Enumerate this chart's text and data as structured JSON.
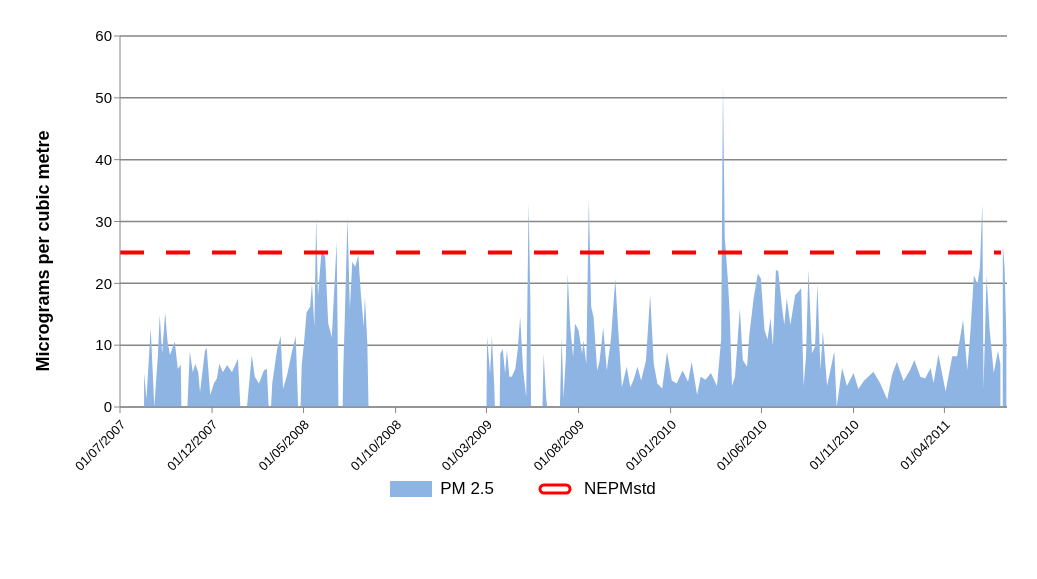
{
  "chart_data": {
    "type": "area",
    "ylabel": "Micrograms per cubic metre",
    "xlim": [
      "2007-07-01",
      "2011-07-14"
    ],
    "xticks": [
      {
        "value": "2007-07-01",
        "label": "01/07/2007"
      },
      {
        "value": "2007-12-01",
        "label": "01/12/2007"
      },
      {
        "value": "2008-05-01",
        "label": "01/05/2008"
      },
      {
        "value": "2008-10-01",
        "label": "01/10/2008"
      },
      {
        "value": "2009-03-01",
        "label": "01/03/2009"
      },
      {
        "value": "2009-08-01",
        "label": "01/08/2009"
      },
      {
        "value": "2010-01-01",
        "label": "01/01/2010"
      },
      {
        "value": "2010-06-01",
        "label": "01/06/2010"
      },
      {
        "value": "2010-11-01",
        "label": "01/11/2010"
      },
      {
        "value": "2011-04-01",
        "label": "01/04/2011"
      }
    ],
    "ylim": [
      0,
      60
    ],
    "yticks": [
      0,
      10,
      20,
      30,
      40,
      50,
      60
    ],
    "grid": "y",
    "legend": "bottom",
    "series": [
      {
        "name": "PM 2.5",
        "color": "#8eb4e3",
        "x": [
          "2007-08-10",
          "2007-08-14",
          "2007-08-21",
          "2007-08-27",
          "2007-09-02",
          "2007-09-05",
          "2007-09-09",
          "2007-09-14",
          "2007-09-18",
          "2007-09-22",
          "2007-09-30",
          "2007-10-05",
          "2007-10-10",
          "2007-10-11",
          "2007-10-21",
          "2007-10-25",
          "2007-10-30",
          "2007-11-03",
          "2007-11-08",
          "2007-11-11",
          "2007-11-19",
          "2007-11-22",
          "2007-11-28",
          "2007-12-04",
          "2007-12-09",
          "2007-12-13",
          "2007-12-19",
          "2007-12-26",
          "2008-01-03",
          "2008-01-13",
          "2008-01-17",
          "2008-01-28",
          "2008-02-05",
          "2008-02-10",
          "2008-02-17",
          "2008-02-25",
          "2008-03-01",
          "2008-03-04",
          "2008-03-08",
          "2008-03-10",
          "2008-03-18",
          "2008-03-24",
          "2008-03-28",
          "2008-04-04",
          "2008-04-11",
          "2008-04-18",
          "2008-04-22",
          "2008-04-26",
          "2008-04-28",
          "2008-05-02",
          "2008-05-06",
          "2008-05-12",
          "2008-05-15",
          "2008-05-19",
          "2008-05-22",
          "2008-05-25",
          "2008-05-31",
          "2008-06-06",
          "2008-06-11",
          "2008-06-17",
          "2008-06-25",
          "2008-06-28",
          "2008-07-05",
          "2008-07-06",
          "2008-07-09",
          "2008-07-13",
          "2008-07-17",
          "2008-07-21",
          "2008-07-26",
          "2008-07-31",
          "2008-08-04",
          "2008-08-09",
          "2008-08-11",
          "2008-08-15",
          "2008-08-17",
          "2008-12-01",
          "2009-03-01",
          "2009-03-02",
          "2009-03-07",
          "2009-03-10",
          "2009-03-14",
          "2009-03-15",
          "2009-03-23",
          "2009-03-24",
          "2009-03-28",
          "2009-04-01",
          "2009-04-04",
          "2009-04-08",
          "2009-04-12",
          "2009-04-18",
          "2009-04-22",
          "2009-04-26",
          "2009-05-01",
          "2009-05-06",
          "2009-05-10",
          "2009-05-13",
          "2009-05-14",
          "2009-06-02",
          "2009-06-04",
          "2009-06-08",
          "2009-06-10",
          "2009-07-01",
          "2009-07-04",
          "2009-07-07",
          "2009-07-11",
          "2009-07-14",
          "2009-07-18",
          "2009-07-23",
          "2009-07-26",
          "2009-08-01",
          "2009-08-07",
          "2009-08-09",
          "2009-08-14",
          "2009-08-18",
          "2009-08-22",
          "2009-08-26",
          "2009-09-01",
          "2009-09-05",
          "2009-09-11",
          "2009-09-17",
          "2009-09-24",
          "2009-10-01",
          "2009-10-06",
          "2009-10-12",
          "2009-10-20",
          "2009-10-26",
          "2009-10-31",
          "2009-11-07",
          "2009-11-13",
          "2009-11-21",
          "2009-11-28",
          "2009-12-04",
          "2009-12-10",
          "2009-12-18",
          "2009-12-26",
          "2010-01-03",
          "2010-01-11",
          "2010-01-21",
          "2010-01-30",
          "2010-02-05",
          "2010-02-14",
          "2010-02-20",
          "2010-02-28",
          "2010-03-09",
          "2010-03-19",
          "2010-03-26",
          "2010-03-29",
          "2010-04-01",
          "2010-04-06",
          "2010-04-09",
          "2010-04-13",
          "2010-04-18",
          "2010-04-26",
          "2010-05-01",
          "2010-05-08",
          "2010-05-12",
          "2010-05-19",
          "2010-05-26",
          "2010-05-31",
          "2010-06-06",
          "2010-06-11",
          "2010-06-16",
          "2010-06-20",
          "2010-06-25",
          "2010-06-29",
          "2010-07-05",
          "2010-07-09",
          "2010-07-13",
          "2010-07-19",
          "2010-07-27",
          "2010-08-02",
          "2010-08-06",
          "2010-08-10",
          "2010-08-14",
          "2010-08-18",
          "2010-08-24",
          "2010-08-29",
          "2010-09-02",
          "2010-09-07",
          "2010-09-11",
          "2010-09-18",
          "2010-09-23",
          "2010-09-30",
          "2010-10-04",
          "2010-10-13",
          "2010-10-21",
          "2010-11-01",
          "2010-11-09",
          "2010-11-18",
          "2010-12-04",
          "2010-12-15",
          "2010-12-27",
          "2011-01-04",
          "2011-01-12",
          "2011-01-23",
          "2011-02-03",
          "2011-02-10",
          "2011-02-20",
          "2011-02-28",
          "2011-03-09",
          "2011-03-14",
          "2011-03-22",
          "2011-04-03",
          "2011-04-14",
          "2011-04-22",
          "2011-05-02",
          "2011-05-09",
          "2011-05-14",
          "2011-05-20",
          "2011-05-26",
          "2011-05-30",
          "2011-06-03",
          "2011-06-05",
          "2011-06-10",
          "2011-06-15",
          "2011-06-22",
          "2011-06-29",
          "2011-07-03",
          "2011-07-07",
          "2011-07-10",
          "2011-07-13"
        ],
        "values": [
          5.5,
          1.3,
          12.8,
          0,
          8.4,
          14.9,
          8.6,
          15.3,
          10.6,
          8.4,
          10.6,
          6.2,
          6.8,
          0,
          0,
          9.0,
          5.6,
          7.0,
          5.6,
          2.4,
          9.0,
          9.6,
          1.9,
          3.8,
          4.6,
          7.0,
          5.6,
          6.8,
          5.6,
          7.8,
          0,
          0,
          8.4,
          4.9,
          3.8,
          5.9,
          6.2,
          0,
          0,
          3.8,
          9.3,
          11.5,
          2.9,
          5.3,
          8.6,
          11.5,
          0,
          0,
          6.8,
          10.6,
          15.3,
          16.2,
          20.0,
          13.0,
          30.7,
          17.9,
          25.4,
          24.3,
          13.5,
          11.3,
          26.7,
          0,
          0,
          5.9,
          15.9,
          30.6,
          15.9,
          23.5,
          22.7,
          24.6,
          18.6,
          13.0,
          17.9,
          10.3,
          0,
          null,
          0,
          11.4,
          5.4,
          11.4,
          3.2,
          0,
          0,
          8.6,
          9.4,
          5.4,
          9.2,
          4.9,
          4.9,
          6.2,
          9.4,
          14.5,
          5.9,
          1.6,
          33.0,
          16.7,
          0,
          0,
          8.6,
          1.6,
          0,
          0,
          11.4,
          1.6,
          8.1,
          21.6,
          13.2,
          8.1,
          13.5,
          12.4,
          8.6,
          10.8,
          7.0,
          33.7,
          16.2,
          14.5,
          5.9,
          7.5,
          12.9,
          5.9,
          11.1,
          20.8,
          12.4,
          3.2,
          6.5,
          3.2,
          4.3,
          6.5,
          4.3,
          7.5,
          18.1,
          7.0,
          3.8,
          3.0,
          8.9,
          4.3,
          3.8,
          5.9,
          4.1,
          7.3,
          2.0,
          4.9,
          4.4,
          5.5,
          3.4,
          10.9,
          52.4,
          27.5,
          20.8,
          15.6,
          3.4,
          4.9,
          15.9,
          7.6,
          6.5,
          11.9,
          17.6,
          21.6,
          20.8,
          12.5,
          10.9,
          14.4,
          9.8,
          22.2,
          21.9,
          16.2,
          13.3,
          17.6,
          13.3,
          18.1,
          18.7,
          19.2,
          3.4,
          8.2,
          22.2,
          8.7,
          9.8,
          19.9,
          6.0,
          12.2,
          3.4,
          5.7,
          9.0,
          0,
          6.3,
          3.4,
          5.5,
          2.9,
          4.2,
          5.7,
          3.9,
          1.2,
          5.2,
          7.3,
          4.2,
          6.0,
          7.6,
          4.9,
          4.6,
          6.3,
          3.9,
          8.5,
          2.5,
          8.2,
          8.2,
          14.1,
          6.0,
          11.9,
          21.3,
          19.9,
          22.6,
          32.9,
          2.9,
          21.3,
          12.7,
          5.5,
          9.1,
          6.9,
          26.1,
          22.6,
          10.9
        ]
      },
      {
        "name": "NEPMstd",
        "type": "line",
        "color": "#ff0000",
        "line_style": "dashed",
        "x": [
          "2007-07-01",
          "2011-07-04"
        ],
        "values": [
          25,
          25
        ]
      }
    ]
  }
}
